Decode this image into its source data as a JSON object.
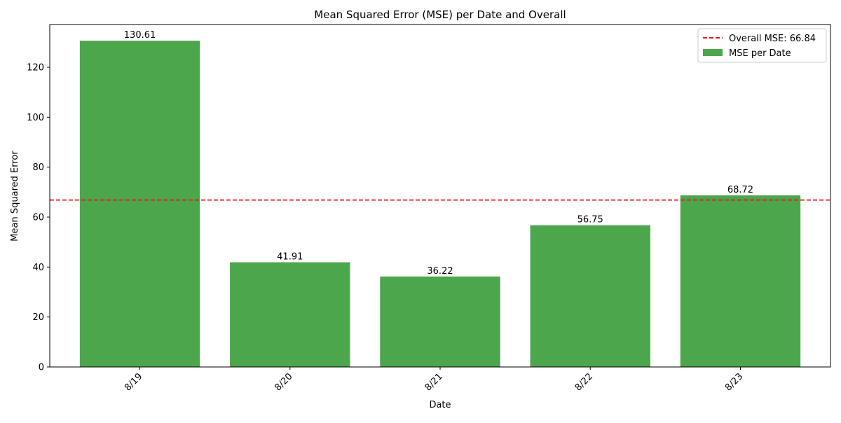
{
  "chart_data": {
    "type": "bar",
    "title": "Mean Squared Error (MSE) per Date and Overall",
    "xlabel": "Date",
    "ylabel": "Mean Squared Error",
    "categories": [
      "8/19",
      "8/20",
      "8/21",
      "8/22",
      "8/23"
    ],
    "series": [
      {
        "name": "MSE per Date",
        "values": [
          130.61,
          41.91,
          36.22,
          56.75,
          68.72
        ],
        "data_labels": [
          "130.61",
          "41.91",
          "36.22",
          "56.75",
          "68.72"
        ],
        "color": "#4ca64c"
      }
    ],
    "reference_line": {
      "label": "Overall MSE: 66.84",
      "value": 66.84,
      "color": "#e31a1c",
      "style": "dashed"
    },
    "y_ticks": [
      0,
      20,
      40,
      60,
      80,
      100,
      120
    ],
    "ylim": [
      0,
      137.1
    ],
    "x_tick_rotation": 45,
    "legend_position": "top-right",
    "grid": false
  }
}
